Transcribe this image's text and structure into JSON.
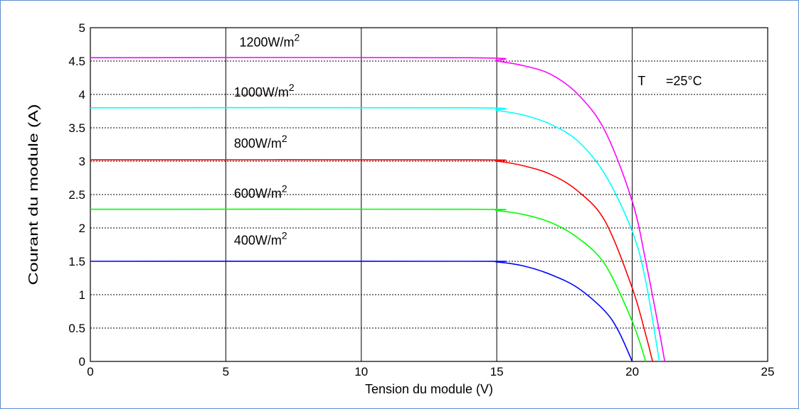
{
  "chart_data": {
    "type": "line",
    "title": "",
    "xlabel": "Tension du module (V)",
    "ylabel": "Courant du module (A)",
    "xlim": [
      0,
      25
    ],
    "ylim": [
      0,
      5
    ],
    "xticks": [
      0,
      5,
      10,
      15,
      20,
      25
    ],
    "yticks": [
      0,
      0.5,
      1,
      1.5,
      2,
      2.5,
      3,
      3.5,
      4,
      4.5,
      5
    ],
    "grid": true,
    "series": [
      {
        "name": "1200W/m2",
        "color": "#ff00ff",
        "isc": 4.55,
        "voc": 21.2,
        "points": [
          [
            0,
            4.55
          ],
          [
            14,
            4.55
          ],
          [
            15,
            4.5
          ],
          [
            16,
            4.43
          ],
          [
            17,
            4.3
          ],
          [
            18,
            4.0
          ],
          [
            19,
            3.45
          ],
          [
            20,
            2.4
          ],
          [
            20.5,
            1.5
          ],
          [
            21,
            0.45
          ],
          [
            21.2,
            0
          ]
        ]
      },
      {
        "name": "1000W/m2",
        "color": "#00ffff",
        "isc": 3.8,
        "voc": 21.0,
        "points": [
          [
            0,
            3.8
          ],
          [
            14,
            3.8
          ],
          [
            15,
            3.76
          ],
          [
            16,
            3.69
          ],
          [
            17,
            3.55
          ],
          [
            18,
            3.3
          ],
          [
            19,
            2.8
          ],
          [
            20,
            1.95
          ],
          [
            20.5,
            1.2
          ],
          [
            21,
            0
          ]
        ]
      },
      {
        "name": "800W/m2",
        "color": "#ff0000",
        "isc": 3.02,
        "voc": 20.75,
        "points": [
          [
            0,
            3.02
          ],
          [
            14,
            3.02
          ],
          [
            15,
            3.0
          ],
          [
            16,
            2.93
          ],
          [
            17,
            2.8
          ],
          [
            18,
            2.55
          ],
          [
            19,
            2.1
          ],
          [
            20,
            1.1
          ],
          [
            20.5,
            0.4
          ],
          [
            20.75,
            0
          ]
        ]
      },
      {
        "name": "600W/m2",
        "color": "#00ff00",
        "isc": 2.28,
        "voc": 20.5,
        "points": [
          [
            0,
            2.28
          ],
          [
            14,
            2.28
          ],
          [
            15,
            2.26
          ],
          [
            16,
            2.2
          ],
          [
            17,
            2.08
          ],
          [
            18,
            1.85
          ],
          [
            19,
            1.45
          ],
          [
            20,
            0.6
          ],
          [
            20.5,
            0
          ]
        ]
      },
      {
        "name": "400W/m2",
        "color": "#0000ff",
        "isc": 1.5,
        "voc": 20.0,
        "points": [
          [
            0,
            1.5
          ],
          [
            14,
            1.5
          ],
          [
            15,
            1.49
          ],
          [
            16,
            1.43
          ],
          [
            17,
            1.3
          ],
          [
            18,
            1.1
          ],
          [
            19,
            0.75
          ],
          [
            19.5,
            0.45
          ],
          [
            20,
            0
          ]
        ]
      }
    ],
    "labels": [
      {
        "base": "1200W/m",
        "sup": "2",
        "x": 5.5,
        "y": 4.72
      },
      {
        "base": "1000W/m",
        "sup": "2",
        "x": 5.3,
        "y": 3.97
      },
      {
        "base": "800W/m",
        "sup": "2",
        "x": 5.3,
        "y": 3.2
      },
      {
        "base": "600W/m",
        "sup": "2",
        "x": 5.3,
        "y": 2.45
      },
      {
        "base": "400W/m",
        "sup": "2",
        "x": 5.3,
        "y": 1.75
      }
    ],
    "annotation": {
      "text_t": "T",
      "text_val": "=25°C",
      "x": 20.2,
      "y": 4.2
    }
  }
}
